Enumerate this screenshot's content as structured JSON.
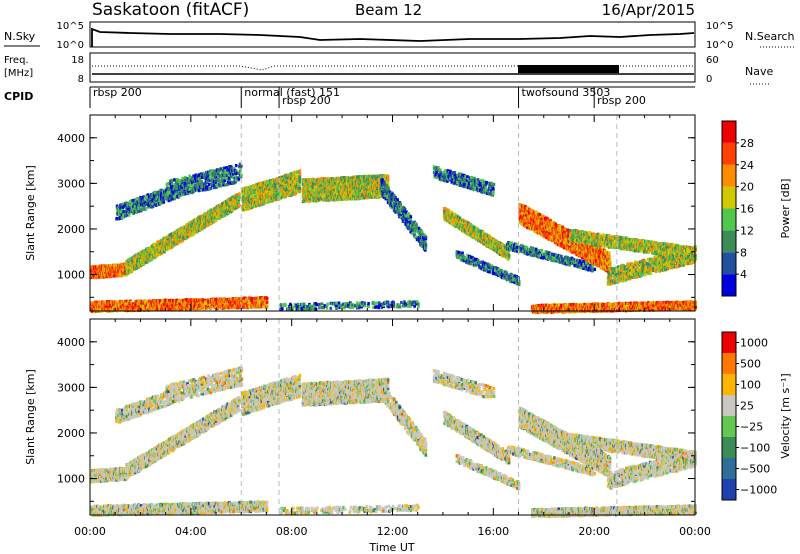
{
  "header": {
    "station": "Saskatoon (fitACF)",
    "beam": "Beam 12",
    "date": "16/Apr/2015"
  },
  "noise_panel": {
    "left_label": "N.Sky",
    "left_ticks": [
      "10^5",
      "10^0"
    ],
    "right_ticks": [
      "10^5",
      "10^0"
    ],
    "right_label": "N.Search"
  },
  "freq_panel": {
    "left_label_1": "Freq.",
    "left_label_2": "[MHz]",
    "left_ticks": [
      "18",
      "8"
    ],
    "right_ticks": [
      "60",
      "0"
    ],
    "right_label": "Nave"
  },
  "cpid": {
    "label": "CPID",
    "segments": [
      {
        "name": "rbsp 200",
        "start_hour": 0,
        "end_hour": 6
      },
      {
        "name": "normal (fast) 151",
        "start_hour": 6,
        "end_hour": 7.5
      },
      {
        "name": "rbsp 200",
        "start_hour": 7.5,
        "end_hour": 17
      },
      {
        "name": "twofsound 3503",
        "start_hour": 17,
        "end_hour": 20
      },
      {
        "name": "rbsp 200",
        "start_hour": 20,
        "end_hour": 24
      }
    ]
  },
  "chart_data": [
    {
      "type": "heatmap",
      "name": "power",
      "ylabel": "Slant Range [km]",
      "yticks": [
        "1000",
        "2000",
        "3000",
        "4000"
      ],
      "ylim": [
        200,
        4500
      ],
      "colorbar_label": "Power [dB]",
      "colorbar_ticks": [
        "28",
        "24",
        "20",
        "16",
        "12",
        "8",
        "4"
      ],
      "colors": [
        "#0000dd",
        "#2050a0",
        "#3c8c5a",
        "#50c850",
        "#d2c800",
        "#ff8c00",
        "#ff4000",
        "#ee0000"
      ]
    },
    {
      "type": "heatmap",
      "name": "velocity",
      "ylabel": "Slant Range [km]",
      "yticks": [
        "1000",
        "2000",
        "3000",
        "4000"
      ],
      "ylim": [
        200,
        4500
      ],
      "colorbar_label": "Velocity [m s⁻¹]",
      "colorbar_ticks": [
        "1000",
        "500",
        "100",
        "25",
        "−25",
        "−100",
        "−500",
        "−1000"
      ],
      "colors": [
        "#2040b0",
        "#2f6e96",
        "#3c8c5a",
        "#64c850",
        "#c8c8c0",
        "#ffb400",
        "#ff7800",
        "#ee0000"
      ]
    }
  ],
  "xaxis": {
    "ticks": [
      "00:00",
      "04:00",
      "08:00",
      "12:00",
      "16:00",
      "20:00",
      "00:00"
    ],
    "xlim_hours": [
      0,
      24
    ],
    "label": "Time UT"
  },
  "vertical_markers_hours": [
    6,
    7.5,
    17,
    20.9
  ]
}
